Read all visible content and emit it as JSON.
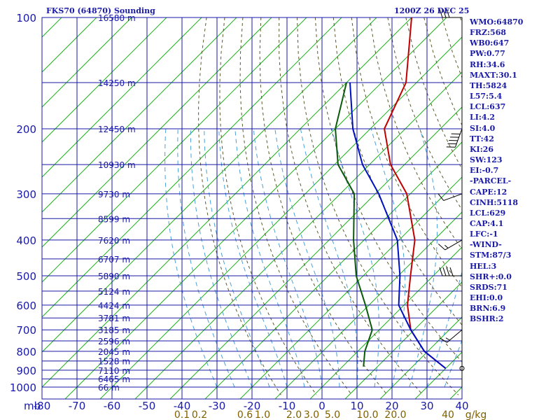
{
  "header": {
    "station": "FKS70 (64870) Sounding",
    "time": "1200Z 26 DEC 25"
  },
  "stats": [
    "WMO:64870",
    "FRZ:568",
    "WB0:647",
    "PW:0.77",
    "RH:34.6",
    "MAXT:30.1",
    "TH:5824",
    "L57:5.4",
    "LCL:637",
    "LI:4.2",
    "SI:4.0",
    "TT:42",
    "KI:26",
    "SW:123",
    "EI:-0.7",
    "-PARCEL-",
    "CAPE:12",
    "CINH:5118",
    "LCL:629",
    "CAP:4.1",
    "LFC:-1",
    "-WIND-",
    "STM:87/3",
    "HEL:3",
    "SHR+:0.0",
    "SRDS:71",
    "EHI:0.0",
    "BRN:6.9",
    "BSHR:2"
  ],
  "colors": {
    "grid": "#1a1aa8",
    "isotherm": "#20b020",
    "dry_adiabat": "#5a5a2a",
    "moist_adiabat": "#4aa0d8",
    "temperature": "#c00000",
    "dewpoint": "#0a5a0a",
    "parcel": "#0010c0",
    "label": "#1a1aa8",
    "mixing_label": "#806000"
  },
  "chart_data": {
    "type": "line",
    "title": "FKS70 (64870) Sounding",
    "xlabel": "mb",
    "x_unit": "°C",
    "mixing_ratio_unit": "g/kg",
    "temperature_ticks": [
      -80,
      -70,
      -60,
      -50,
      -40,
      -30,
      -20,
      -10,
      0,
      10,
      20,
      30,
      40
    ],
    "temperature_tick_labels": [
      "-80",
      "-70",
      "-60",
      "-50",
      "-40",
      "-30",
      "-20",
      "-10",
      "0",
      "10",
      "20",
      "30",
      "40"
    ],
    "pressure_levels": [
      100,
      200,
      300,
      400,
      500,
      600,
      700,
      800,
      900,
      1000
    ],
    "pressure_labels": [
      "100",
      "200",
      "300",
      "400",
      "500",
      "600",
      "700",
      "800",
      "900",
      "1000"
    ],
    "height_labels": [
      {
        "p": 100,
        "h": "16580 m"
      },
      {
        "p": 150,
        "h": "14250 m"
      },
      {
        "p": 200,
        "h": "12450 m"
      },
      {
        "p": 250,
        "h": "10930 m"
      },
      {
        "p": 300,
        "h": "9730 m"
      },
      {
        "p": 350,
        "h": "8599 m"
      },
      {
        "p": 400,
        "h": "7620 m"
      },
      {
        "p": 450,
        "h": "6707 m"
      },
      {
        "p": 500,
        "h": "5890 m"
      },
      {
        "p": 550,
        "h": "5124 m"
      },
      {
        "p": 600,
        "h": "4424 m"
      },
      {
        "p": 650,
        "h": "3781 m"
      },
      {
        "p": 700,
        "h": "3185 m"
      },
      {
        "p": 750,
        "h": "2596 m"
      },
      {
        "p": 800,
        "h": "2045 m"
      },
      {
        "p": 850,
        "h": "1528 m"
      },
      {
        "p": 900,
        "h": "7110 m"
      },
      {
        "p": 950,
        "h": "6465 m"
      },
      {
        "p": 1000,
        "h": "66 m"
      }
    ],
    "mixing_ratio_labels": [
      {
        "t": -40,
        "label": "0.1"
      },
      {
        "t": -35,
        "label": "0.2"
      },
      {
        "t": -22,
        "label": "0.6"
      },
      {
        "t": -17,
        "label": "1.0"
      },
      {
        "t": -8,
        "label": "2.0"
      },
      {
        "t": -3,
        "label": "3.0"
      },
      {
        "t": 3,
        "label": "5.0"
      },
      {
        "t": 13,
        "label": "10.0"
      },
      {
        "t": 21,
        "label": "20.0"
      },
      {
        "t": 36,
        "label": "40"
      },
      {
        "t": 44,
        "label": "g/kg"
      }
    ],
    "series": [
      {
        "name": "Temperature",
        "points": [
          {
            "p": 100,
            "t": -80
          },
          {
            "p": 150,
            "t": -63
          },
          {
            "p": 200,
            "t": -56
          },
          {
            "p": 250,
            "t": -44
          },
          {
            "p": 300,
            "t": -31
          },
          {
            "p": 400,
            "t": -15.5
          },
          {
            "p": 500,
            "t": -6.5
          },
          {
            "p": 600,
            "t": 1
          },
          {
            "p": 700,
            "t": 9
          },
          {
            "p": 800,
            "t": 19
          },
          {
            "p": 890,
            "t": 30
          }
        ]
      },
      {
        "name": "Dewpoint",
        "points": [
          {
            "p": 150,
            "t": -80
          },
          {
            "p": 200,
            "t": -70
          },
          {
            "p": 250,
            "t": -59
          },
          {
            "p": 300,
            "t": -46
          },
          {
            "p": 400,
            "t": -33
          },
          {
            "p": 500,
            "t": -22
          },
          {
            "p": 600,
            "t": -11
          },
          {
            "p": 700,
            "t": -2
          },
          {
            "p": 800,
            "t": 2
          },
          {
            "p": 880,
            "t": 6
          }
        ]
      },
      {
        "name": "Parcel",
        "points": [
          {
            "p": 150,
            "t": -79
          },
          {
            "p": 200,
            "t": -65
          },
          {
            "p": 250,
            "t": -52
          },
          {
            "p": 300,
            "t": -39
          },
          {
            "p": 400,
            "t": -20.5
          },
          {
            "p": 500,
            "t": -9.5
          },
          {
            "p": 600,
            "t": -1.5
          },
          {
            "p": 700,
            "t": 9
          },
          {
            "p": 800,
            "t": 19
          },
          {
            "p": 890,
            "t": 30
          }
        ]
      }
    ],
    "wind_barbs": [
      {
        "p": 100,
        "dir": 270,
        "kt": 30
      },
      {
        "p": 200,
        "dir": 200,
        "kt": 50
      },
      {
        "p": 300,
        "dir": 250,
        "kt": 10
      },
      {
        "p": 400,
        "dir": 240,
        "kt": 15
      },
      {
        "p": 500,
        "dir": 270,
        "kt": 40
      },
      {
        "p": 700,
        "dir": 230,
        "kt": 15
      },
      {
        "p": 890,
        "dir": 225,
        "kt": 0
      }
    ]
  }
}
